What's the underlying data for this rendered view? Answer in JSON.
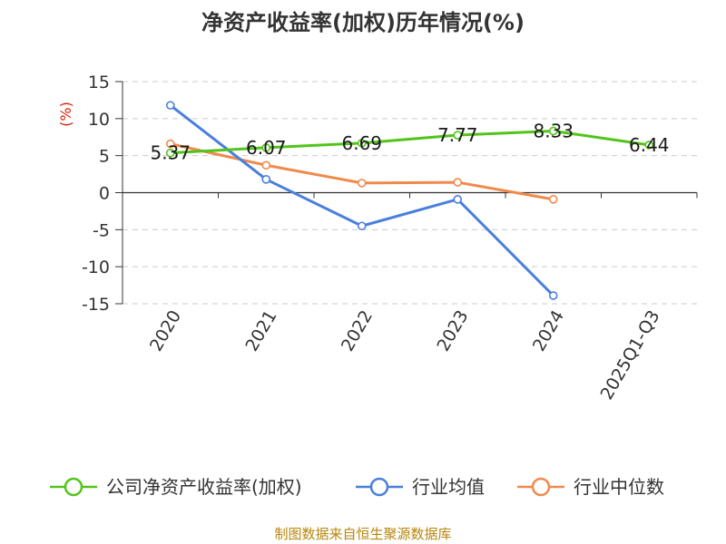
{
  "chart_data": {
    "type": "line",
    "title": "净资产收益率(加权)历年情况(%)",
    "unit_label": "(%)",
    "categories": [
      "2020",
      "2021",
      "2022",
      "2023",
      "2024",
      "2025Q1-Q3"
    ],
    "ylim": [
      -15,
      15
    ],
    "yticks": [
      15,
      10,
      5,
      0,
      -5,
      -10,
      -15
    ],
    "grid": true,
    "legend_position": "bottom",
    "series": [
      {
        "name": "公司净资产收益率(加权)",
        "color": "#52c41a",
        "values": [
          5.37,
          6.07,
          6.69,
          7.77,
          8.33,
          6.44
        ],
        "labels": [
          "5.37",
          "6.07",
          "6.69",
          "7.77",
          "8.33",
          "6.44"
        ],
        "show_labels": true
      },
      {
        "name": "行业均值",
        "color": "#4a7fdc",
        "values": [
          11.8,
          1.8,
          -4.5,
          -0.9,
          -13.9,
          null
        ],
        "show_labels": false
      },
      {
        "name": "行业中位数",
        "color": "#f08a4b",
        "values": [
          6.6,
          3.7,
          1.3,
          1.4,
          -0.9,
          null
        ],
        "show_labels": false
      }
    ],
    "source": "制图数据来自恒生聚源数据库"
  }
}
